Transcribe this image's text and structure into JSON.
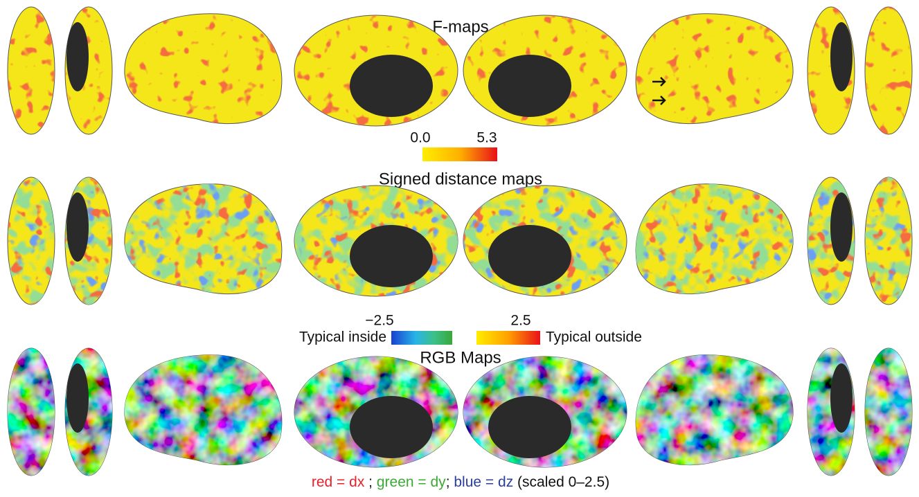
{
  "f_maps": {
    "title": "F-maps",
    "scale": {
      "min_label": "0.0",
      "max_label": "5.3"
    }
  },
  "signed_distance_maps": {
    "title": "Signed distance maps",
    "scale": {
      "left_text": "Typical inside",
      "min_label": "−2.5",
      "max_label": "2.5",
      "right_text": "Typical outside"
    }
  },
  "rgb_maps": {
    "title": "RGB Maps",
    "caption": [
      "red = dx",
      ";",
      "green = dy",
      ";",
      "blue = dz",
      "(scaled 0–2.5)"
    ]
  }
}
